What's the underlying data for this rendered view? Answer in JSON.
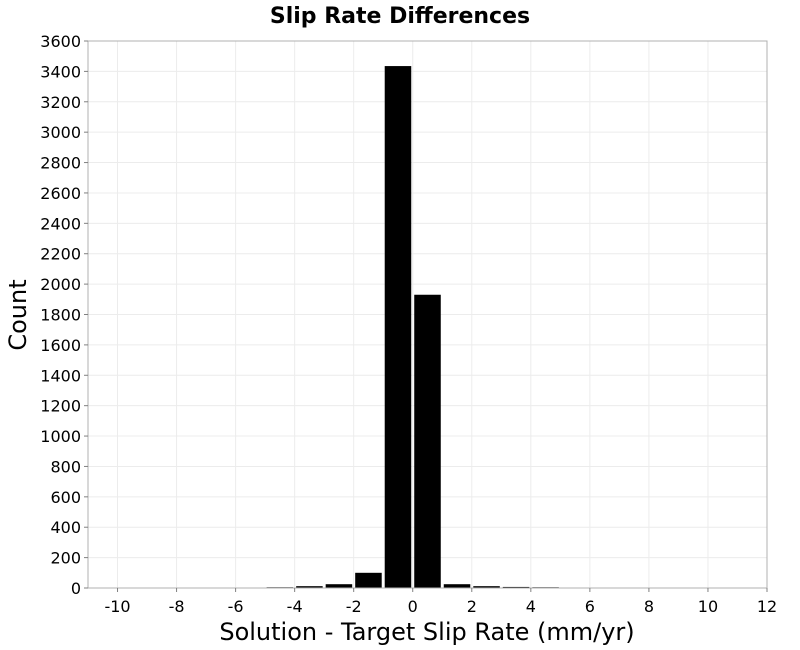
{
  "chart_data": {
    "type": "bar",
    "title": "Slip Rate Differences",
    "xlabel": "Solution - Target Slip Rate (mm/yr)",
    "ylabel": "Count",
    "xlim": [
      -11,
      12
    ],
    "ylim": [
      0,
      3600
    ],
    "x_ticks": [
      -10,
      -8,
      -6,
      -4,
      -2,
      0,
      2,
      4,
      6,
      8,
      10,
      12
    ],
    "x_tick_labels": [
      "-10",
      "-8",
      "-6",
      "-4",
      "-2",
      "0",
      "2",
      "4",
      "6",
      "8",
      "10",
      "12"
    ],
    "y_ticks": [
      0,
      200,
      400,
      600,
      800,
      1000,
      1200,
      1400,
      1600,
      1800,
      2000,
      2200,
      2400,
      2600,
      2800,
      3000,
      3200,
      3400,
      3600
    ],
    "y_tick_labels": [
      "0",
      "200",
      "400",
      "600",
      "800",
      "1000",
      "1200",
      "1400",
      "1600",
      "1800",
      "2000",
      "2200",
      "2400",
      "2600",
      "2800",
      "3000",
      "3200",
      "3400",
      "3600"
    ],
    "bin_width": 1,
    "bins": [
      {
        "x": -10,
        "count": 0
      },
      {
        "x": -9,
        "count": 2
      },
      {
        "x": -8,
        "count": 0
      },
      {
        "x": -7,
        "count": 0
      },
      {
        "x": -6,
        "count": 3
      },
      {
        "x": -5,
        "count": 5
      },
      {
        "x": -4,
        "count": 12
      },
      {
        "x": -3,
        "count": 25
      },
      {
        "x": -2,
        "count": 100
      },
      {
        "x": -1,
        "count": 3435
      },
      {
        "x": 0,
        "count": 1930
      },
      {
        "x": 1,
        "count": 25
      },
      {
        "x": 2,
        "count": 12
      },
      {
        "x": 3,
        "count": 7
      },
      {
        "x": 4,
        "count": 5
      },
      {
        "x": 5,
        "count": 2
      },
      {
        "x": 6,
        "count": 2
      },
      {
        "x": 7,
        "count": 2
      },
      {
        "x": 8,
        "count": 0
      },
      {
        "x": 9,
        "count": 0
      },
      {
        "x": 10,
        "count": 0
      }
    ],
    "bar_color": "#000000",
    "grid": true
  }
}
